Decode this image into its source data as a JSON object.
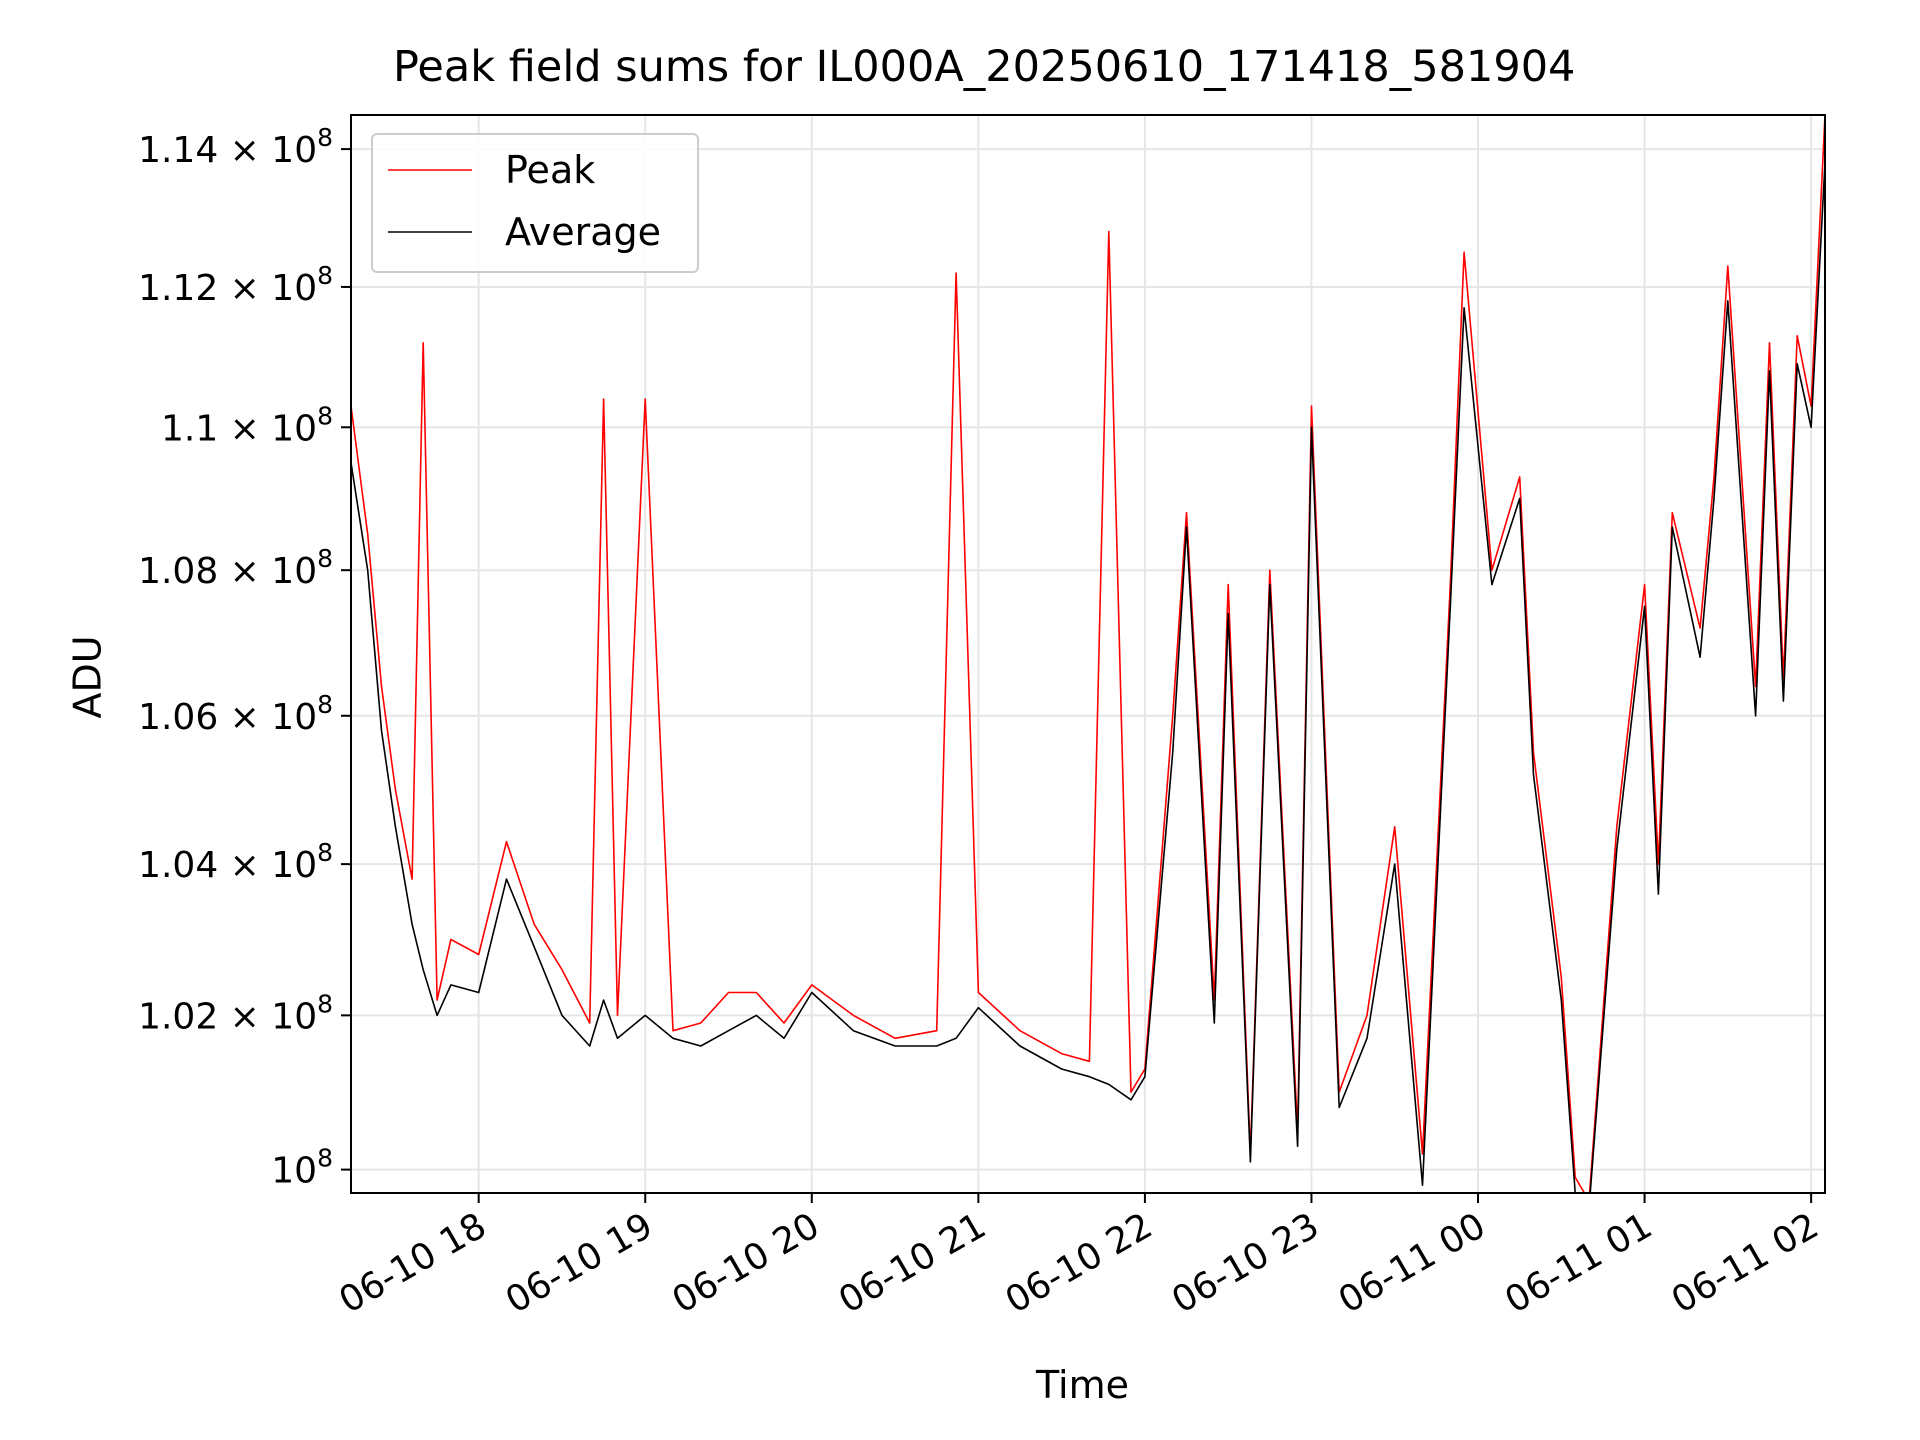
{
  "chart_data": {
    "type": "line",
    "title": "Peak field sums for IL000A_20250610_171418_581904",
    "xlabel": "Time",
    "ylabel": "ADU",
    "y_scale": "log",
    "ylim": [
      99700000,
      114500000
    ],
    "xlim": [
      "2025-06-10 17:14",
      "2025-06-11 02:05"
    ],
    "grid": true,
    "legend": "top-left",
    "x_ticks": [
      "06-10 18",
      "06-10 19",
      "06-10 20",
      "06-10 21",
      "06-10 22",
      "06-10 23",
      "06-11 00",
      "06-11 01",
      "06-11 02"
    ],
    "y_ticks": [
      {
        "value": 100000000,
        "mant": "",
        "exp": "8",
        "base": "10"
      },
      {
        "value": 102000000,
        "mant": "1.02 × ",
        "exp": "8",
        "base": "10"
      },
      {
        "value": 104000000,
        "mant": "1.04 × ",
        "exp": "8",
        "base": "10"
      },
      {
        "value": 106000000,
        "mant": "1.06 × ",
        "exp": "8",
        "base": "10"
      },
      {
        "value": 108000000,
        "mant": "1.08 × ",
        "exp": "8",
        "base": "10"
      },
      {
        "value": 110000000,
        "mant": "1.1 × ",
        "exp": "8",
        "base": "10"
      },
      {
        "value": 112000000,
        "mant": "1.12 × ",
        "exp": "8",
        "base": "10"
      },
      {
        "value": 114000000,
        "mant": "1.14 × ",
        "exp": "8",
        "base": "10"
      }
    ],
    "series": [
      {
        "name": "Peak",
        "color": "#ff0000",
        "x": [
          "2025-06-10 17:14",
          "2025-06-10 17:20",
          "2025-06-10 17:25",
          "2025-06-10 17:30",
          "2025-06-10 17:36",
          "2025-06-10 17:40",
          "2025-06-10 17:45",
          "2025-06-10 17:50",
          "2025-06-10 18:00",
          "2025-06-10 18:10",
          "2025-06-10 18:20",
          "2025-06-10 18:30",
          "2025-06-10 18:40",
          "2025-06-10 18:45",
          "2025-06-10 18:50",
          "2025-06-10 19:00",
          "2025-06-10 19:10",
          "2025-06-10 19:20",
          "2025-06-10 19:30",
          "2025-06-10 19:40",
          "2025-06-10 19:50",
          "2025-06-10 20:00",
          "2025-06-10 20:15",
          "2025-06-10 20:30",
          "2025-06-10 20:45",
          "2025-06-10 20:52",
          "2025-06-10 21:00",
          "2025-06-10 21:15",
          "2025-06-10 21:30",
          "2025-06-10 21:40",
          "2025-06-10 21:47",
          "2025-06-10 21:55",
          "2025-06-10 22:00",
          "2025-06-10 22:10",
          "2025-06-10 22:15",
          "2025-06-10 22:25",
          "2025-06-10 22:30",
          "2025-06-10 22:38",
          "2025-06-10 22:45",
          "2025-06-10 22:55",
          "2025-06-10 23:00",
          "2025-06-10 23:10",
          "2025-06-10 23:20",
          "2025-06-10 23:30",
          "2025-06-10 23:40",
          "2025-06-10 23:50",
          "2025-06-10 23:55",
          "2025-06-11 00:05",
          "2025-06-11 00:15",
          "2025-06-11 00:20",
          "2025-06-11 00:30",
          "2025-06-11 00:35",
          "2025-06-11 00:40",
          "2025-06-11 00:50",
          "2025-06-11 01:00",
          "2025-06-11 01:05",
          "2025-06-11 01:10",
          "2025-06-11 01:20",
          "2025-06-11 01:25",
          "2025-06-11 01:30",
          "2025-06-11 01:40",
          "2025-06-11 01:45",
          "2025-06-11 01:50",
          "2025-06-11 01:55",
          "2025-06-11 02:00",
          "2025-06-11 02:05"
        ],
        "values": [
          110300000,
          108500000,
          106400000,
          105000000,
          103800000,
          111200000,
          102200000,
          103000000,
          102800000,
          104300000,
          103200000,
          102600000,
          101900000,
          110400000,
          102000000,
          110400000,
          101800000,
          101900000,
          102300000,
          102300000,
          101900000,
          102400000,
          102000000,
          101700000,
          101800000,
          112200000,
          102300000,
          101800000,
          101500000,
          101400000,
          112800000,
          101000000,
          101300000,
          106000000,
          108800000,
          102200000,
          107800000,
          100200000,
          108000000,
          100500000,
          110300000,
          101000000,
          102000000,
          104500000,
          100200000,
          107800000,
          112500000,
          108000000,
          109300000,
          105500000,
          102500000,
          99900000,
          99600000,
          104500000,
          107800000,
          104000000,
          108800000,
          107200000,
          109300000,
          112300000,
          106400000,
          111200000,
          106500000,
          111300000,
          110300000,
          114500000
        ]
      },
      {
        "name": "Average",
        "color": "#000000",
        "x": [
          "2025-06-10 17:14",
          "2025-06-10 17:20",
          "2025-06-10 17:25",
          "2025-06-10 17:30",
          "2025-06-10 17:36",
          "2025-06-10 17:40",
          "2025-06-10 17:45",
          "2025-06-10 17:50",
          "2025-06-10 18:00",
          "2025-06-10 18:10",
          "2025-06-10 18:20",
          "2025-06-10 18:30",
          "2025-06-10 18:40",
          "2025-06-10 18:45",
          "2025-06-10 18:50",
          "2025-06-10 19:00",
          "2025-06-10 19:10",
          "2025-06-10 19:20",
          "2025-06-10 19:30",
          "2025-06-10 19:40",
          "2025-06-10 19:50",
          "2025-06-10 20:00",
          "2025-06-10 20:15",
          "2025-06-10 20:30",
          "2025-06-10 20:45",
          "2025-06-10 20:52",
          "2025-06-10 21:00",
          "2025-06-10 21:15",
          "2025-06-10 21:30",
          "2025-06-10 21:40",
          "2025-06-10 21:47",
          "2025-06-10 21:55",
          "2025-06-10 22:00",
          "2025-06-10 22:10",
          "2025-06-10 22:15",
          "2025-06-10 22:25",
          "2025-06-10 22:30",
          "2025-06-10 22:38",
          "2025-06-10 22:45",
          "2025-06-10 22:55",
          "2025-06-10 23:00",
          "2025-06-10 23:10",
          "2025-06-10 23:20",
          "2025-06-10 23:30",
          "2025-06-10 23:40",
          "2025-06-10 23:50",
          "2025-06-10 23:55",
          "2025-06-11 00:05",
          "2025-06-11 00:15",
          "2025-06-11 00:20",
          "2025-06-11 00:30",
          "2025-06-11 00:35",
          "2025-06-11 00:40",
          "2025-06-11 00:50",
          "2025-06-11 01:00",
          "2025-06-11 01:05",
          "2025-06-11 01:10",
          "2025-06-11 01:20",
          "2025-06-11 01:25",
          "2025-06-11 01:30",
          "2025-06-11 01:40",
          "2025-06-11 01:45",
          "2025-06-11 01:50",
          "2025-06-11 01:55",
          "2025-06-11 02:00",
          "2025-06-11 02:05"
        ],
        "values": [
          109500000,
          108000000,
          105800000,
          104500000,
          103200000,
          102600000,
          102000000,
          102400000,
          102300000,
          103800000,
          102900000,
          102000000,
          101600000,
          102200000,
          101700000,
          102000000,
          101700000,
          101600000,
          101800000,
          102000000,
          101700000,
          102300000,
          101800000,
          101600000,
          101600000,
          101700000,
          102100000,
          101600000,
          101300000,
          101200000,
          101100000,
          100900000,
          101200000,
          105500000,
          108600000,
          101900000,
          107400000,
          100100000,
          107800000,
          100300000,
          110000000,
          100800000,
          101700000,
          104000000,
          99800000,
          107500000,
          111700000,
          107800000,
          109000000,
          105200000,
          102200000,
          99700000,
          99500000,
          104200000,
          107500000,
          103600000,
          108600000,
          106800000,
          109000000,
          111800000,
          106000000,
          110800000,
          106200000,
          110900000,
          110000000,
          113800000
        ]
      }
    ]
  }
}
